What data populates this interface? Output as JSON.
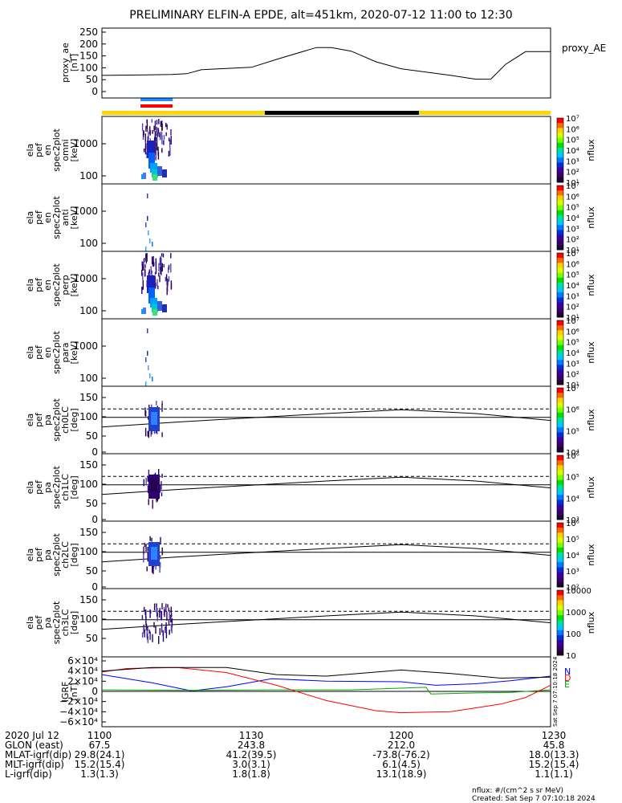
{
  "title": "PRELIMINARY ELFIN-A EPDE, alt=451km, 2020-07-12 11:00 to 12:30",
  "colors": {
    "sun_yellow": "#ffd700",
    "eclipse_black": "#000000",
    "science_blue": "#1e90ff",
    "science_red": "#ff0000",
    "N_color": "#0000ff",
    "E_color": "#00aa00",
    "D_color": "#ff0000"
  },
  "panels": [
    {
      "ylabel": [
        "proxy_ae",
        "[nT]"
      ],
      "right_label": "proxy_AE",
      "ticks": [
        "250",
        "200",
        "150",
        "100",
        "50",
        "0"
      ]
    },
    {
      "ylabel": [
        "ela",
        "pef",
        "en",
        "spec2plot",
        "omni",
        "[keV]"
      ],
      "ticks": [
        "1000",
        "100"
      ],
      "cbar": "nflux"
    },
    {
      "ylabel": [
        "ela",
        "pef",
        "en",
        "spec2plot",
        "anti",
        "[keV]"
      ],
      "ticks": [
        "1000",
        "100"
      ],
      "cbar": "nflux"
    },
    {
      "ylabel": [
        "ela",
        "pef",
        "en",
        "spec2plot",
        "perp",
        "[keV]"
      ],
      "ticks": [
        "1000",
        "100"
      ],
      "cbar": "nflux"
    },
    {
      "ylabel": [
        "ela",
        "pef",
        "en",
        "spec2plot",
        "para",
        "[keV]"
      ],
      "ticks": [
        "1000",
        "100"
      ],
      "cbar": "nflux"
    },
    {
      "ylabel": [
        "ela",
        "pef",
        "pa",
        "spec2plot",
        "ch0LC",
        "[deg]"
      ],
      "ticks": [
        "150",
        "100",
        "50",
        "0"
      ],
      "cbar": "nflux"
    },
    {
      "ylabel": [
        "ela",
        "pef",
        "pa",
        "spec2plot",
        "ch1LC",
        "[deg]"
      ],
      "ticks": [
        "150",
        "100",
        "50",
        "0"
      ],
      "cbar": "nflux"
    },
    {
      "ylabel": [
        "ela",
        "pef",
        "pa",
        "spec2plot",
        "ch2LC",
        "[deg]"
      ],
      "ticks": [
        "150",
        "100",
        "50",
        "0"
      ],
      "cbar": "nflux"
    },
    {
      "ylabel": [
        "ela",
        "pef",
        "pa",
        "spec2plot",
        "ch3LC",
        "[deg]"
      ],
      "ticks": [
        "150",
        "100",
        "50"
      ],
      "cbar": "nflux"
    },
    {
      "ylabel": [
        "IGRF",
        "[nT]"
      ],
      "ticks": [
        "6×10⁴",
        "4×10⁴",
        "2×10⁴",
        "0",
        "−2×10⁴",
        "−4×10⁴",
        "−6×10⁴"
      ],
      "legend": [
        "N",
        "E",
        "D"
      ]
    }
  ],
  "colorbars": [
    [
      "10⁷",
      "10⁶",
      "10⁵",
      "10⁴",
      "10³",
      "10²",
      "10¹"
    ],
    [
      "10⁷",
      "10⁶",
      "10⁵",
      "10⁴",
      "10³",
      "10²",
      "10¹"
    ],
    [
      "10⁷",
      "10⁶",
      "10⁵",
      "10⁴",
      "10³",
      "10²",
      "10¹"
    ],
    [
      "10⁷",
      "10⁶",
      "10⁵",
      "10⁴",
      "10³",
      "10²",
      "10¹"
    ],
    [
      "10⁷",
      "10⁶",
      "10⁵",
      "10⁴"
    ],
    [
      "10⁶",
      "10⁵",
      "10⁴",
      "10³"
    ],
    [
      "10⁶",
      "10⁵",
      "10⁴",
      "10³",
      "10²"
    ],
    [
      "10000",
      "1000",
      "100",
      "10"
    ]
  ],
  "footer": {
    "rows": [
      [
        "2020 Jul 12",
        "1100",
        "1130",
        "1200",
        "1230"
      ],
      [
        "GLON (east)",
        "67.5",
        "243.8",
        "212.0",
        "45.8"
      ],
      [
        "MLAT-igrf(dip)",
        "29.8(24.1)",
        "41.2(39.5)",
        "-73.8(-76.2)",
        "18.0(13.3)"
      ],
      [
        "MLT-igrf(dip)",
        "15.2(15.4)",
        "3.0(3.1)",
        "6.1(4.5)",
        "15.2(15.4)"
      ],
      [
        "L-igrf(dip)",
        "1.3(1.3)",
        "1.8(1.8)",
        "13.1(18.9)",
        "1.1(1.1)"
      ]
    ],
    "units_note": "nflux: #/(cm^2 s sr MeV)",
    "created": "Created: Sat Sep  7 07:10:18 2024",
    "vertical_stamp": "Sat Sep  7 07:10:18 2024"
  },
  "chart_data": [
    {
      "type": "line",
      "title": "PRELIMINARY ELFIN-A EPDE, alt=451km, 2020-07-12 11:00 to 12:30",
      "ylabel": "proxy_ae [nT]",
      "ylim": [
        0,
        260
      ],
      "series": [
        {
          "name": "proxy_AE",
          "x": [
            "11:00",
            "11:09",
            "11:14",
            "11:17",
            "11:20",
            "11:30",
            "11:35",
            "11:43",
            "11:46",
            "11:50",
            "11:55",
            "12:00",
            "12:10",
            "12:15",
            "12:18",
            "12:21",
            "12:25",
            "12:30"
          ],
          "values": [
            68,
            70,
            72,
            75,
            92,
            102,
            135,
            185,
            185,
            170,
            125,
            96,
            68,
            52,
            52,
            115,
            168,
            168
          ]
        }
      ]
    },
    {
      "type": "heatmap",
      "ylabel": "ela pef en spec2plot omni [keV]",
      "y_scale": "log",
      "x_range": [
        "11:00",
        "12:30"
      ],
      "nonzero_x_range": [
        "11:08",
        "11:14"
      ],
      "y_ticks": [
        100,
        1000
      ],
      "colorbar": "nflux",
      "colorbar_range": [
        "10¹",
        "10⁷"
      ]
    },
    {
      "type": "heatmap",
      "ylabel": "ela pef en spec2plot anti [keV]",
      "y_scale": "log",
      "x_range": [
        "11:00",
        "12:30"
      ],
      "nonzero_x_range": [
        "11:09",
        "11:11"
      ],
      "y_ticks": [
        100,
        1000
      ],
      "colorbar": "nflux",
      "colorbar_range": [
        "10¹",
        "10⁷"
      ]
    },
    {
      "type": "heatmap",
      "ylabel": "ela pef en spec2plot perp [keV]",
      "y_scale": "log",
      "x_range": [
        "11:00",
        "12:30"
      ],
      "nonzero_x_range": [
        "11:08",
        "11:14"
      ],
      "y_ticks": [
        100,
        1000
      ],
      "colorbar": "nflux",
      "colorbar_range": [
        "10¹",
        "10⁷"
      ]
    },
    {
      "type": "heatmap",
      "ylabel": "ela pef en spec2plot para [keV]",
      "y_scale": "log",
      "x_range": [
        "11:00",
        "12:30"
      ],
      "nonzero_x_range": [
        "11:09",
        "11:11"
      ],
      "y_ticks": [
        100,
        1000
      ],
      "colorbar": "nflux",
      "colorbar_range": [
        "10¹",
        "10⁷"
      ]
    },
    {
      "type": "heatmap",
      "ylabel": "ela pef pa spec2plot ch0LC [deg]",
      "ylim": [
        0,
        180
      ],
      "nonzero_x_range": [
        "11:09",
        "11:11"
      ],
      "reference_lines": {
        "dashed": 112,
        "solid_flat": 90,
        "loss_cone": {
          "x": [
            "11:00",
            "11:15",
            "11:45",
            "12:00",
            "12:15",
            "12:30"
          ],
          "values": [
            65,
            78,
            100,
            110,
            100,
            82
          ]
        }
      }
    },
    {
      "type": "heatmap",
      "ylabel": "ela pef pa spec2plot ch1LC [deg]",
      "ylim": [
        0,
        180
      ],
      "nonzero_x_range": [
        "11:09",
        "11:11"
      ],
      "reference_lines": {
        "dashed": 112,
        "solid_flat": 90,
        "loss_cone": {
          "x": [
            "11:00",
            "11:15",
            "11:45",
            "12:00",
            "12:15",
            "12:30"
          ],
          "values": [
            65,
            78,
            100,
            110,
            100,
            82
          ]
        }
      }
    },
    {
      "type": "heatmap",
      "ylabel": "ela pef pa spec2plot ch2LC [deg]",
      "ylim": [
        0,
        180
      ],
      "nonzero_x_range": [
        "11:09",
        "11:11"
      ],
      "reference_lines": {
        "dashed": 112,
        "solid_flat": 90,
        "loss_cone": {
          "x": [
            "11:00",
            "11:15",
            "11:45",
            "12:00",
            "12:15",
            "12:30"
          ],
          "values": [
            65,
            78,
            100,
            110,
            100,
            82
          ]
        }
      }
    },
    {
      "type": "heatmap",
      "ylabel": "ela pef pa spec2plot ch3LC [deg]",
      "ylim": [
        0,
        180
      ],
      "nonzero_x_range": [
        "11:08",
        "11:14"
      ],
      "reference_lines": {
        "dashed": 112,
        "solid_flat": 90,
        "loss_cone": {
          "x": [
            "11:00",
            "11:15",
            "11:45",
            "12:00",
            "12:15",
            "12:30"
          ],
          "values": [
            65,
            78,
            100,
            110,
            100,
            82
          ]
        }
      }
    },
    {
      "type": "line",
      "ylabel": "IGRF [nT]",
      "ylim": [
        -60000,
        60000
      ],
      "series": [
        {
          "name": "N",
          "color": "#0000ff",
          "x": [
            "11:00",
            "11:10",
            "11:18",
            "11:25",
            "11:34",
            "11:45",
            "12:00",
            "12:07",
            "12:15",
            "12:22",
            "12:30"
          ],
          "values": [
            33000,
            17000,
            1000,
            9000,
            25000,
            20000,
            19000,
            12000,
            15000,
            21000,
            30000
          ]
        },
        {
          "name": "E",
          "color": "#00aa00",
          "x": [
            "11:00",
            "11:20",
            "11:35",
            "11:50",
            "12:05",
            "12:06",
            "12:15",
            "12:22",
            "12:30"
          ],
          "values": [
            3000,
            2000,
            3000,
            3000,
            8000,
            -5000,
            -3000,
            -2000,
            3000
          ]
        },
        {
          "name": "D",
          "color": "#ff0000",
          "x": [
            "11:00",
            "11:05",
            "11:15",
            "11:25",
            "11:35",
            "11:45",
            "11:55",
            "12:00",
            "12:10",
            "12:20",
            "12:25",
            "12:30"
          ],
          "values": [
            38000,
            45000,
            47000,
            37000,
            12000,
            -18000,
            -38000,
            -42000,
            -40000,
            -25000,
            -12000,
            12000
          ]
        },
        {
          "name": "total",
          "color": "#000000",
          "x": [
            "11:00",
            "11:10",
            "11:25",
            "11:35",
            "11:45",
            "12:00",
            "12:10",
            "12:20",
            "12:30"
          ],
          "values": [
            40000,
            47000,
            47000,
            33000,
            30000,
            42000,
            35000,
            26000,
            28000
          ]
        }
      ]
    }
  ]
}
